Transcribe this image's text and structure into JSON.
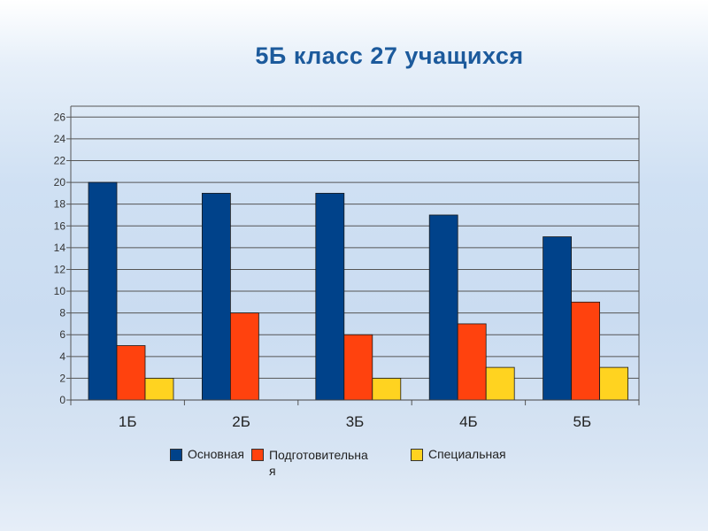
{
  "chart_data": {
    "type": "bar",
    "title": "5Б класс 27 учащихся",
    "categories": [
      "1Б",
      "2Б",
      "3Б",
      "4Б",
      "5Б"
    ],
    "series": [
      {
        "name": "Основная",
        "color": "#00428a",
        "values": [
          20,
          19,
          19,
          17,
          15
        ]
      },
      {
        "name": "Подготовительная",
        "color": "#ff420e",
        "values": [
          5,
          8,
          6,
          7,
          9
        ]
      },
      {
        "name": "Специальная",
        "color": "#ffd320",
        "values": [
          2,
          0,
          2,
          3,
          3
        ]
      }
    ],
    "yticks": [
      0,
      2,
      4,
      6,
      8,
      10,
      12,
      14,
      16,
      18,
      20,
      22,
      24,
      26
    ],
    "ylim": [
      0,
      27
    ],
    "xlabel": "",
    "ylabel": "",
    "grid": true,
    "legend": "bottom"
  },
  "legend_labels": {
    "s0": "Основная",
    "s1a": "Подготовительна",
    "s1b": "я",
    "s2": "Специальная"
  }
}
